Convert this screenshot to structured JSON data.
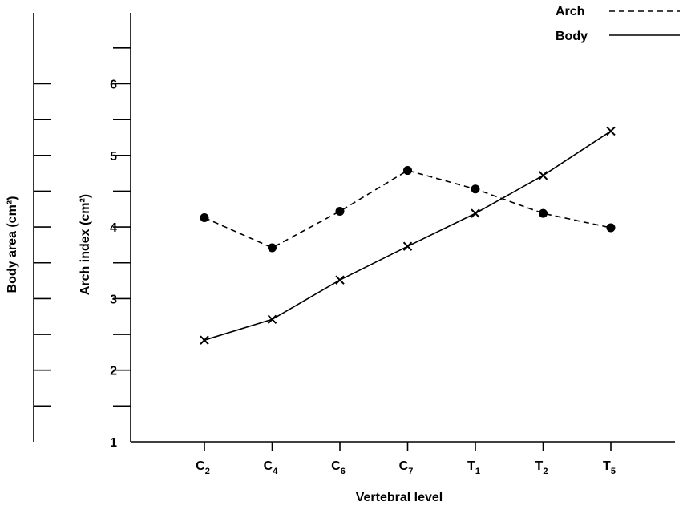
{
  "chart_data": {
    "type": "line",
    "title": "",
    "xlabel": "Vertebral level",
    "ylabel": "Arch index (cm²)",
    "ylabel_secondary": "Body area (cm²)",
    "ylim": [
      1,
      7
    ],
    "y_ticks": [
      "1",
      "2",
      "3",
      "4",
      "5",
      "6"
    ],
    "categories": [
      {
        "main": "C",
        "sub": "2"
      },
      {
        "main": "C",
        "sub": "4"
      },
      {
        "main": "C",
        "sub": "6"
      },
      {
        "main": "C",
        "sub": "7"
      },
      {
        "main": "T",
        "sub": "1"
      },
      {
        "main": "T",
        "sub": "2"
      },
      {
        "main": "T",
        "sub": "5"
      }
    ],
    "series": [
      {
        "name": "Arch",
        "style": "dashed",
        "marker": "circle",
        "values": [
          4.13,
          3.71,
          4.22,
          4.79,
          4.53,
          4.19,
          3.99
        ]
      },
      {
        "name": "Body",
        "style": "solid",
        "marker": "x",
        "values": [
          2.42,
          2.71,
          3.26,
          3.73,
          4.19,
          4.72,
          5.34
        ]
      }
    ],
    "legend_position": "top-right",
    "grid": false
  }
}
